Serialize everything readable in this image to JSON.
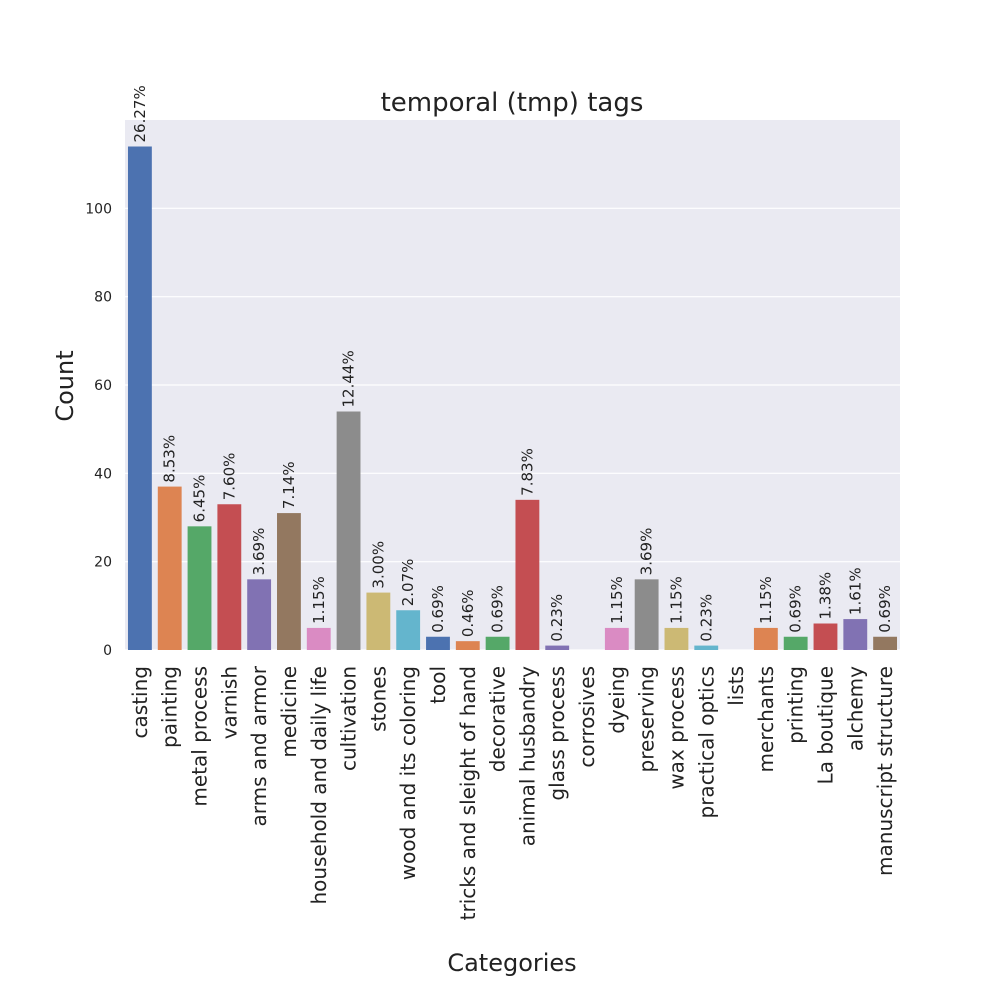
{
  "chart_data": {
    "type": "bar",
    "title": "temporal (tmp) tags",
    "xlabel": "Categories",
    "ylabel": "Count",
    "ylim": [
      0,
      120
    ],
    "yticks": [
      0,
      20,
      40,
      60,
      80,
      100
    ],
    "grid": true,
    "categories": [
      "casting",
      "painting",
      "metal process",
      "varnish",
      "arms and armor",
      "medicine",
      "household and daily life",
      "cultivation",
      "stones",
      "wood and its coloring",
      "tool",
      "tricks and sleight of hand",
      "decorative",
      "animal husbandry",
      "glass process",
      "corrosives",
      "dyeing",
      "preserving",
      "wax process",
      "practical optics",
      "lists",
      "merchants",
      "printing",
      "La boutique",
      "alchemy",
      "manuscript structure"
    ],
    "values": [
      114,
      37,
      28,
      33,
      16,
      31,
      5,
      54,
      13,
      9,
      3,
      2,
      3,
      34,
      1,
      0,
      5,
      16,
      5,
      1,
      0,
      5,
      3,
      6,
      7,
      3
    ],
    "data_labels": [
      "26.27%",
      "8.53%",
      "6.45%",
      "7.60%",
      "3.69%",
      "7.14%",
      "1.15%",
      "12.44%",
      "3.00%",
      "2.07%",
      "0.69%",
      "0.46%",
      "0.69%",
      "7.83%",
      "0.23%",
      "",
      "1.15%",
      "3.69%",
      "1.15%",
      "0.23%",
      "",
      "1.15%",
      "0.69%",
      "1.38%",
      "1.61%",
      "0.69%"
    ],
    "colors": [
      "#4c72b0",
      "#dd8452",
      "#55a868",
      "#c44e52",
      "#8172b3",
      "#937860",
      "#da8bc3",
      "#8c8c8c",
      "#ccb974",
      "#64b5cd"
    ],
    "plot_background": "#eaeaf2",
    "grid_color": "#ffffff"
  }
}
